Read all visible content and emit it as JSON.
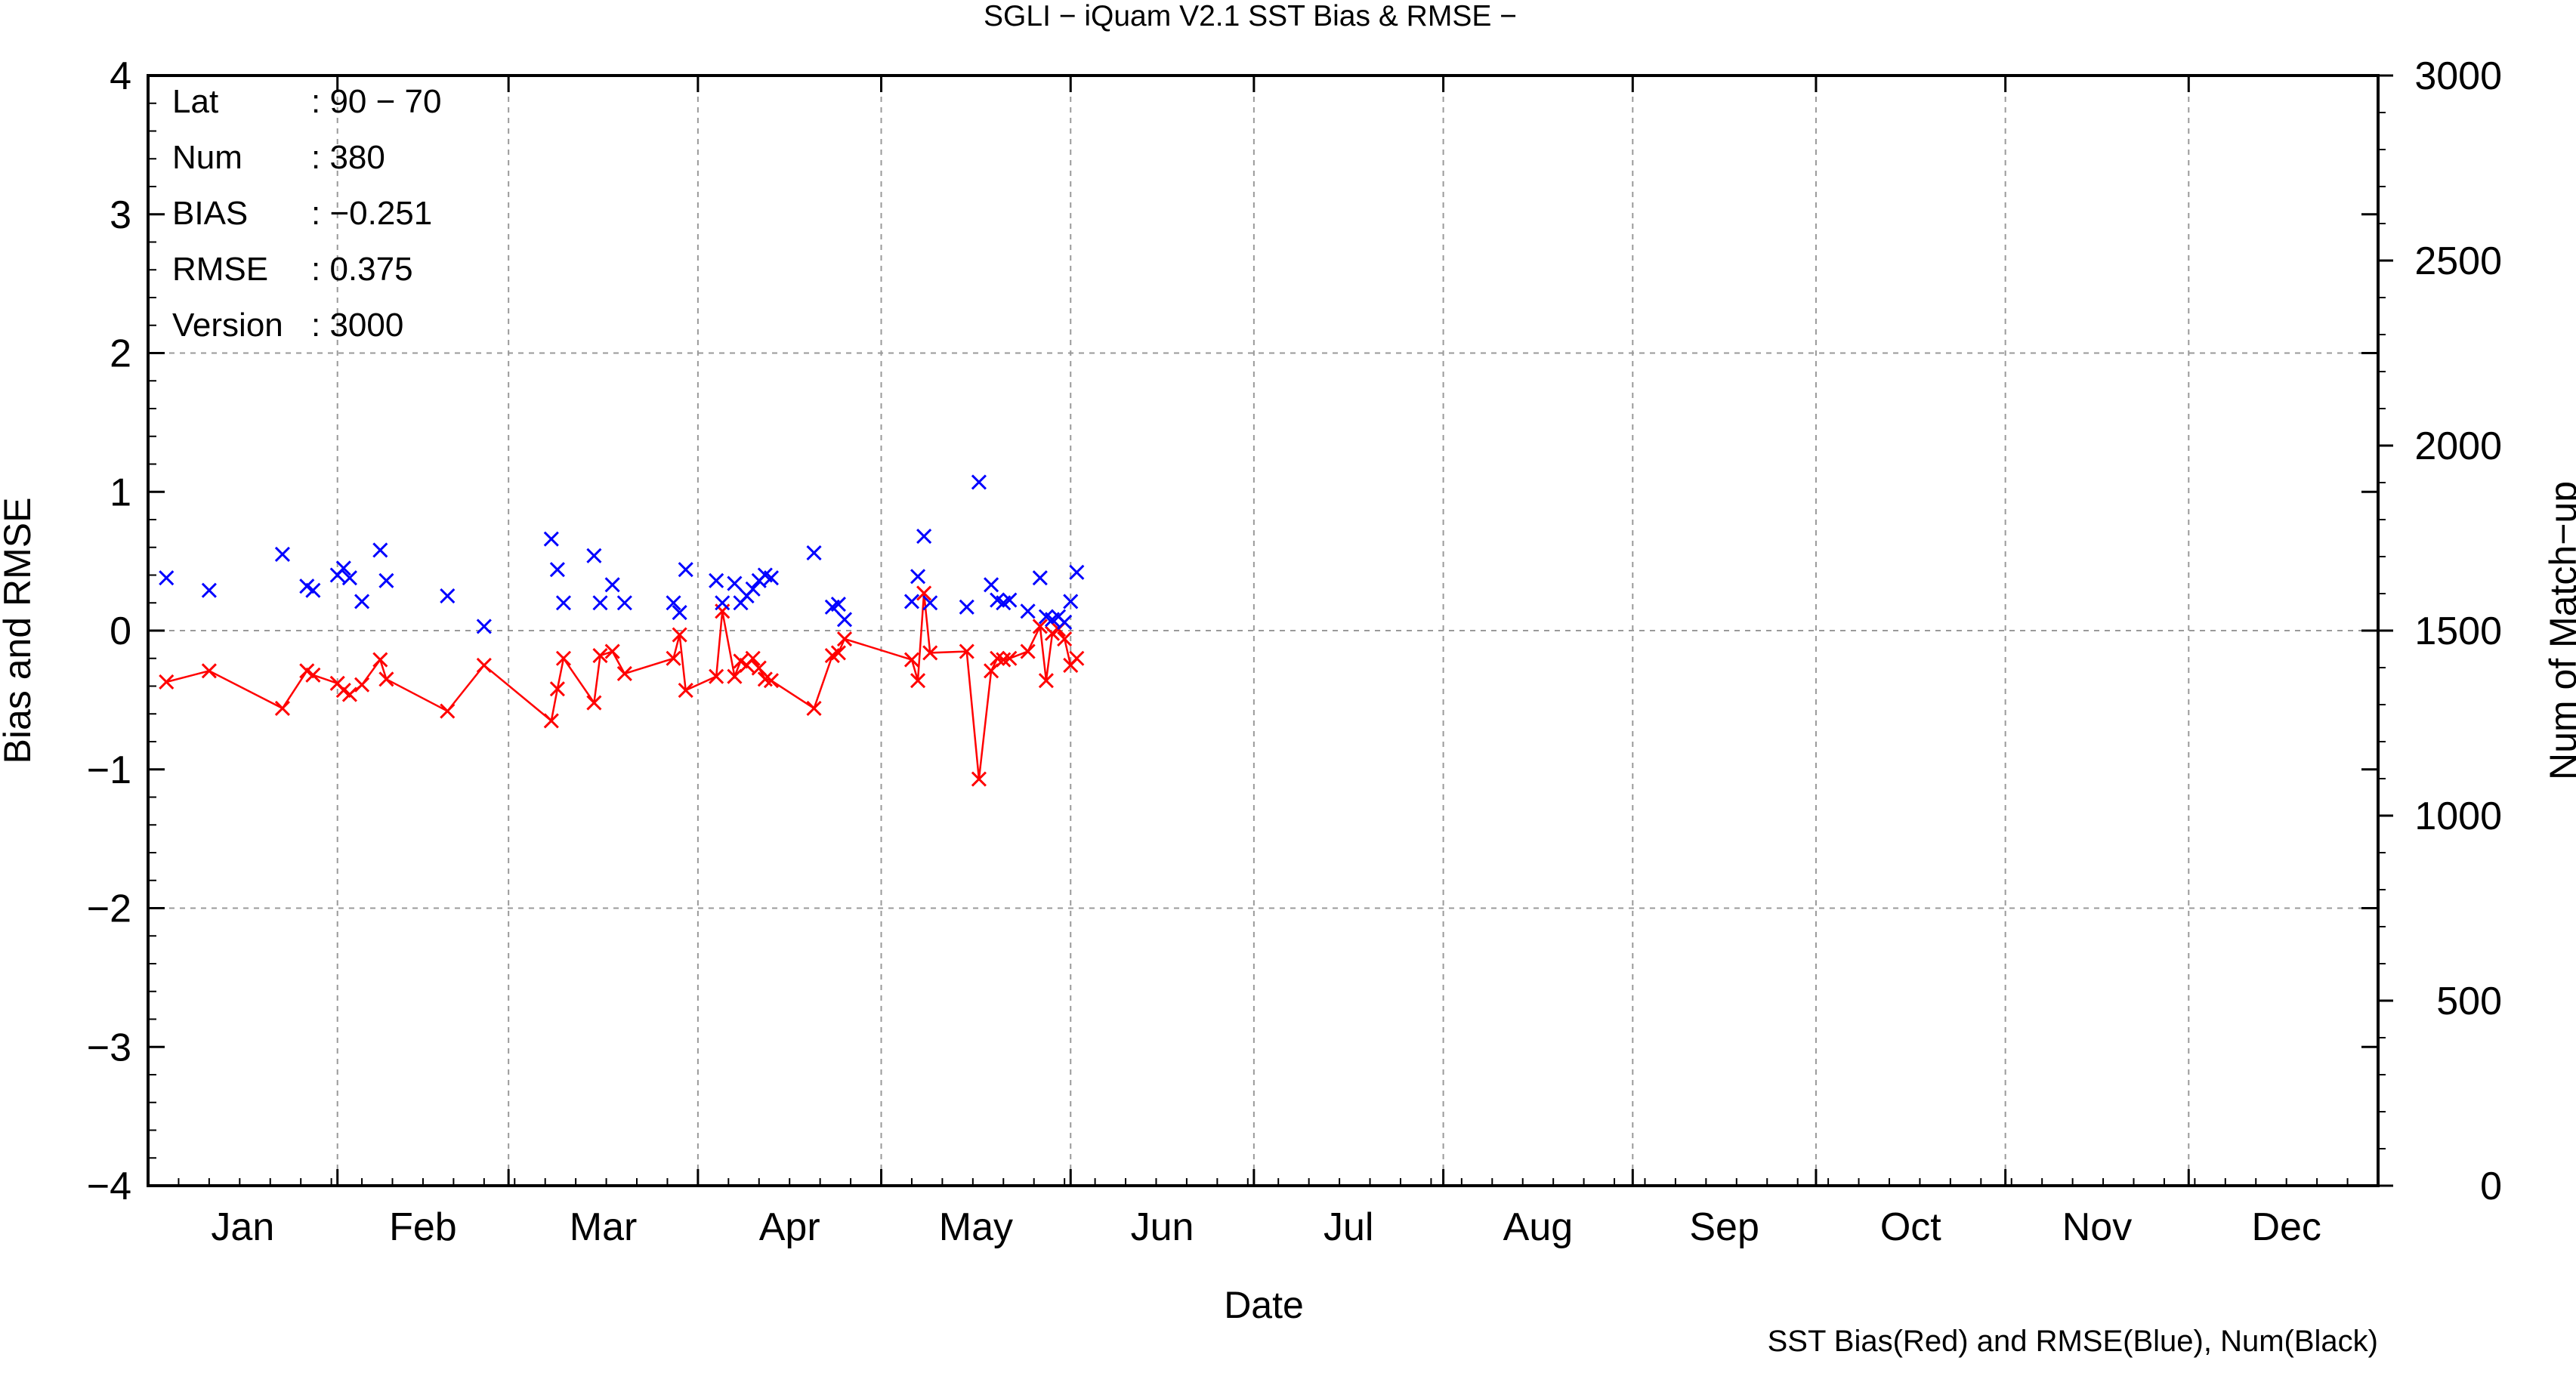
{
  "chart_data": {
    "type": "scatter",
    "title": "SGLI − iQuam V2.1 SST Bias & RMSE  −",
    "xlabel": "Date",
    "ylabel": "Bias and RMSE",
    "y2label": "Num of Match−up",
    "caption": "SST Bias(Red) and RMSE(Blue), Num(Black)",
    "xlim": [
      1,
      366
    ],
    "ylim": [
      -4,
      4
    ],
    "y2lim": [
      0,
      3000
    ],
    "grid": true,
    "months": [
      "Jan",
      "Feb",
      "Mar",
      "Apr",
      "May",
      "Jun",
      "Jul",
      "Aug",
      "Sep",
      "Oct",
      "Nov",
      "Dec"
    ],
    "month_starts": [
      1,
      32,
      60,
      91,
      121,
      152,
      182,
      213,
      244,
      274,
      305,
      335
    ],
    "y_ticks": [
      "−4",
      "−3",
      "−2",
      "−1",
      "0",
      "1",
      "2",
      "3",
      "4"
    ],
    "y2_ticks": [
      "0",
      "500",
      "1000",
      "1500",
      "2000",
      "2500",
      "3000"
    ],
    "stats": [
      {
        "label": "Lat",
        "value": ": 90 − 70"
      },
      {
        "label": "Num",
        "value": ": 380"
      },
      {
        "label": "BIAS",
        "value": ": −0.251"
      },
      {
        "label": "RMSE",
        "value": ": 0.375"
      },
      {
        "label": "Version",
        "value": ": 3000"
      }
    ],
    "series": [
      {
        "name": "SST Bias",
        "color": "#ff0000",
        "marker": "x",
        "line": true,
        "x": [
          4,
          11,
          23,
          27,
          28,
          32,
          33,
          34,
          36,
          39,
          40,
          50,
          56,
          67,
          68,
          69,
          74,
          75,
          77,
          79,
          87,
          88,
          89,
          94,
          95,
          97,
          98,
          99,
          100,
          101,
          102,
          103,
          110,
          113,
          114,
          115,
          126,
          127,
          128,
          129,
          135,
          137,
          139,
          140,
          141,
          142,
          145,
          147,
          148,
          149,
          150,
          151,
          152,
          153
        ],
        "y": [
          -0.37,
          -0.29,
          -0.56,
          -0.29,
          -0.32,
          -0.38,
          -0.43,
          -0.46,
          -0.39,
          -0.21,
          -0.35,
          -0.58,
          -0.25,
          -0.65,
          -0.42,
          -0.2,
          -0.52,
          -0.18,
          -0.15,
          -0.31,
          -0.2,
          -0.03,
          -0.43,
          -0.33,
          0.14,
          -0.33,
          -0.22,
          -0.25,
          -0.2,
          -0.27,
          -0.35,
          -0.36,
          -0.56,
          -0.18,
          -0.16,
          -0.06,
          -0.21,
          -0.36,
          0.27,
          -0.16,
          -0.15,
          -1.07,
          -0.29,
          -0.2,
          -0.21,
          -0.2,
          -0.15,
          0.03,
          -0.36,
          -0.02,
          0.01,
          -0.06,
          -0.25,
          -0.2
        ]
      },
      {
        "name": "RMSE",
        "color": "#0000ff",
        "marker": "x",
        "line": false,
        "x": [
          4,
          11,
          23,
          27,
          28,
          32,
          33,
          34,
          36,
          39,
          40,
          50,
          56,
          67,
          68,
          69,
          74,
          75,
          77,
          79,
          87,
          88,
          89,
          94,
          95,
          97,
          98,
          99,
          100,
          101,
          102,
          103,
          110,
          113,
          114,
          115,
          126,
          127,
          128,
          129,
          135,
          137,
          139,
          140,
          141,
          142,
          145,
          147,
          148,
          149,
          150,
          151,
          152,
          153
        ],
        "y": [
          0.38,
          0.29,
          0.55,
          0.32,
          0.29,
          0.4,
          0.45,
          0.38,
          0.21,
          0.58,
          0.36,
          0.25,
          0.03,
          0.66,
          0.44,
          0.2,
          0.54,
          0.2,
          0.33,
          0.2,
          0.2,
          0.13,
          0.44,
          0.36,
          0.2,
          0.34,
          0.2,
          0.25,
          0.3,
          0.36,
          0.4,
          0.38,
          0.56,
          0.17,
          0.19,
          0.08,
          0.21,
          0.39,
          0.68,
          0.2,
          0.17,
          1.07,
          0.33,
          0.22,
          0.2,
          0.22,
          0.14,
          0.38,
          0.1,
          0.08,
          0.1,
          0.06,
          0.21,
          0.42
        ]
      }
    ]
  }
}
